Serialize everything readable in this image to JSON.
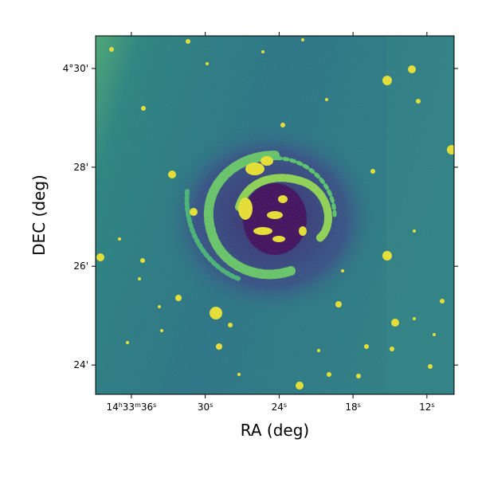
{
  "chart_data": {
    "type": "image",
    "xlabel": "RA (deg)",
    "ylabel": "DEC (deg)",
    "xlim": [
      218.4121,
      218.2908
    ],
    "ylim": [
      4.3901,
      4.511
    ],
    "xticks": [
      {
        "value": 218.4,
        "label": "14h33m36s"
      },
      {
        "value": 218.375,
        "label": "30s"
      },
      {
        "value": 218.35,
        "label": "24s"
      },
      {
        "value": 218.325,
        "label": "18s"
      },
      {
        "value": 218.3,
        "label": "12s"
      }
    ],
    "yticks": [
      {
        "value": 4.4,
        "label": "24'"
      },
      {
        "value": 4.4333,
        "label": "26'"
      },
      {
        "value": 4.4667,
        "label": "28'"
      },
      {
        "value": 4.5,
        "label": "4°30'"
      }
    ]
  }
}
